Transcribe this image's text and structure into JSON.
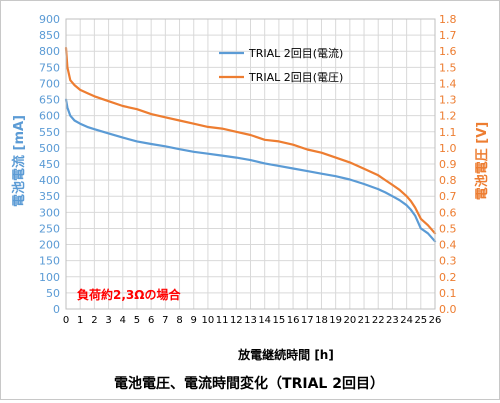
{
  "chart_data": {
    "type": "line",
    "title": "電池電圧、電流時間変化（TRIAL 2回目）",
    "xlabel": "放電継続時間 [h]",
    "ylabel_left": "電池電流 [mA]",
    "ylabel_right": "電池電圧 [V]",
    "annotation": "負荷約2,3Ωの場合",
    "xlim": [
      0,
      26
    ],
    "ylim_left": [
      0,
      900
    ],
    "ylim_right": [
      0,
      1.8
    ],
    "x_ticks": [
      0,
      1,
      2,
      3,
      4,
      5,
      6,
      7,
      8,
      9,
      10,
      11,
      12,
      13,
      14,
      15,
      16,
      17,
      18,
      19,
      20,
      21,
      22,
      23,
      24,
      25,
      26
    ],
    "y_left_ticks": [
      0,
      50,
      100,
      150,
      200,
      250,
      300,
      350,
      400,
      450,
      500,
      550,
      600,
      650,
      700,
      750,
      800,
      850,
      900
    ],
    "y_right_ticks": [
      "0.0",
      "0.1",
      "0.2",
      "0.3",
      "0.4",
      "0.5",
      "0.6",
      "0.7",
      "0.8",
      "0.9",
      "1.0",
      "1.1",
      "1.2",
      "1.3",
      "1.4",
      "1.5",
      "1.6",
      "1.7",
      "1.8"
    ],
    "grid": true,
    "legend_position": "top-right",
    "colors": {
      "current": "#5b9bd5",
      "voltage": "#ed7d31",
      "left_axis": "#5b9bd5",
      "right_axis": "#ed7d31",
      "annotation": "#ff0000",
      "grid": "#d9d9d9"
    },
    "series": [
      {
        "name": "TRIAL 2回目(電流)",
        "axis": "left",
        "x": [
          0,
          0.1,
          0.3,
          0.6,
          1,
          1.5,
          2,
          3,
          4,
          5,
          6,
          7,
          8,
          9,
          10,
          11,
          12,
          13,
          14,
          15,
          16,
          17,
          18,
          19,
          20,
          21,
          22,
          22.5,
          23,
          23.5,
          24,
          24.3,
          24.6,
          25,
          25.5,
          26
        ],
        "y": [
          650,
          625,
          600,
          585,
          575,
          565,
          558,
          545,
          532,
          520,
          512,
          505,
          496,
          488,
          482,
          476,
          470,
          462,
          452,
          444,
          436,
          428,
          420,
          412,
          402,
          388,
          372,
          362,
          350,
          338,
          322,
          308,
          290,
          250,
          235,
          210
        ]
      },
      {
        "name": "TRIAL 2回目(電圧)",
        "axis": "right",
        "x": [
          0,
          0.1,
          0.3,
          0.6,
          1,
          1.5,
          2,
          3,
          4,
          5,
          6,
          7,
          8,
          9,
          10,
          11,
          12,
          13,
          14,
          15,
          16,
          17,
          18,
          19,
          20,
          21,
          22,
          22.5,
          23,
          23.5,
          24,
          24.3,
          24.6,
          25,
          25.5,
          26
        ],
        "y": [
          1.62,
          1.5,
          1.42,
          1.39,
          1.36,
          1.34,
          1.32,
          1.29,
          1.26,
          1.24,
          1.21,
          1.19,
          1.17,
          1.15,
          1.13,
          1.12,
          1.1,
          1.08,
          1.05,
          1.04,
          1.02,
          0.99,
          0.97,
          0.94,
          0.91,
          0.87,
          0.83,
          0.8,
          0.77,
          0.74,
          0.7,
          0.67,
          0.63,
          0.56,
          0.52,
          0.47
        ]
      }
    ]
  }
}
